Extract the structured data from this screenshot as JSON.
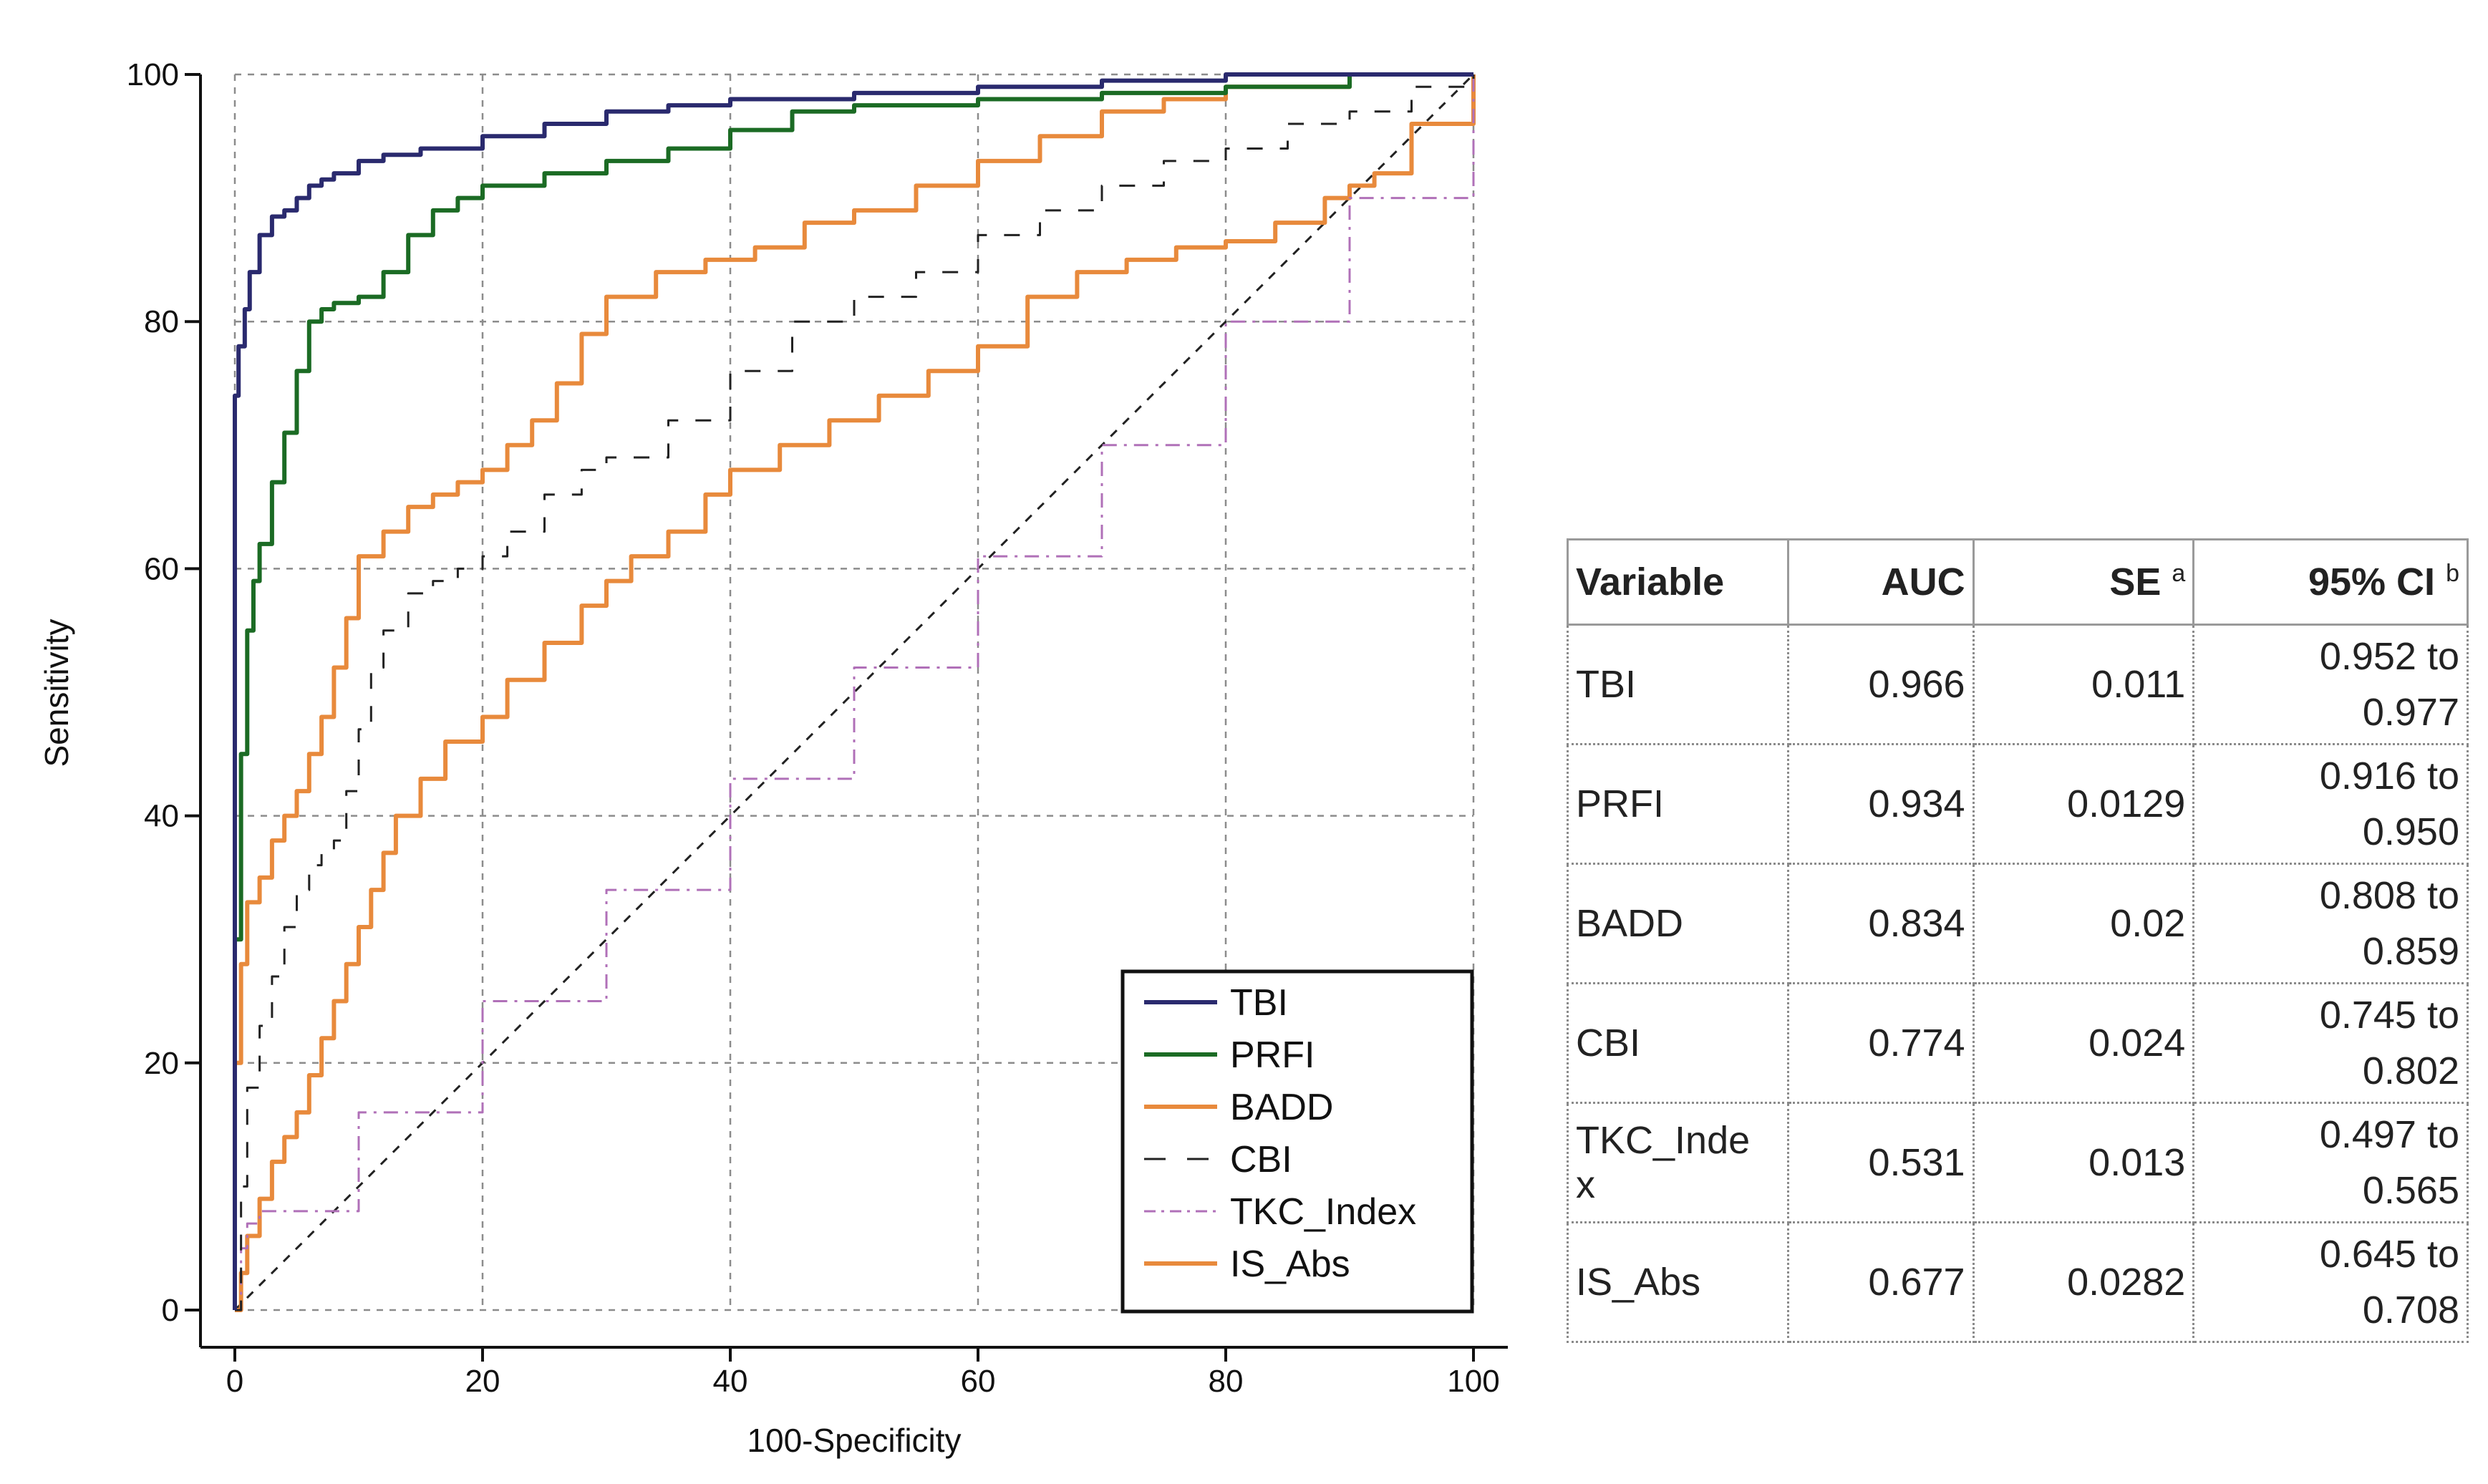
{
  "chart_data": {
    "type": "line",
    "title": "",
    "xlabel": "100-Specificity",
    "ylabel": "Sensitivity",
    "xlim": [
      0,
      100
    ],
    "ylim": [
      0,
      100
    ],
    "xticks": [
      "0",
      "20",
      "40",
      "60",
      "80",
      "100"
    ],
    "yticks": [
      "0",
      "20",
      "40",
      "60",
      "80",
      "100"
    ],
    "grid": true,
    "legend_position": "bottom-right",
    "reference_line": {
      "x": [
        0,
        100
      ],
      "y": [
        0,
        100
      ],
      "style": "dashed",
      "color": "#222222"
    },
    "series": [
      {
        "name": "TBI",
        "color": "#2a2a6e",
        "dash": "solid",
        "x": [
          0,
          0,
          0.3,
          0.8,
          1.2,
          2,
          3,
          4,
          5,
          6,
          7,
          8,
          10,
          12,
          15,
          20,
          25,
          30,
          35,
          40,
          50,
          60,
          70,
          80,
          90,
          100
        ],
        "y": [
          0,
          74,
          78,
          81,
          84,
          87,
          88.5,
          89,
          90,
          91,
          91.5,
          92,
          93,
          93.5,
          94,
          95,
          96,
          97,
          97.5,
          98,
          98.5,
          99,
          99.5,
          100,
          100,
          100
        ]
      },
      {
        "name": "PRFI",
        "color": "#1b6b24",
        "dash": "solid",
        "x": [
          0,
          0,
          0.5,
          1,
          1.5,
          2,
          3,
          4,
          5,
          6,
          7,
          8,
          10,
          12,
          14,
          16,
          18,
          20,
          25,
          30,
          35,
          40,
          45,
          50,
          60,
          70,
          80,
          90,
          100
        ],
        "y": [
          0,
          30,
          45,
          55,
          59,
          62,
          67,
          71,
          76,
          80,
          81,
          81.5,
          82,
          84,
          87,
          89,
          90,
          91,
          92,
          93,
          94,
          95.5,
          97,
          97.5,
          98,
          98.5,
          99,
          100,
          100
        ]
      },
      {
        "name": "BADD",
        "color": "#e88a3c",
        "dash": "solid",
        "x": [
          0,
          0,
          0.5,
          1,
          2,
          3,
          4,
          5,
          6,
          7,
          8,
          9,
          10,
          12,
          14,
          16,
          18,
          20,
          22,
          24,
          26,
          28,
          30,
          34,
          38,
          42,
          46,
          50,
          55,
          60,
          65,
          70,
          75,
          80,
          90,
          100
        ],
        "y": [
          0,
          20,
          28,
          33,
          35,
          38,
          40,
          42,
          45,
          48,
          52,
          56,
          61,
          63,
          65,
          66,
          67,
          68,
          70,
          72,
          75,
          79,
          82,
          84,
          85,
          86,
          88,
          89,
          91,
          93,
          95,
          97,
          98,
          99,
          100,
          100
        ]
      },
      {
        "name": "CBI",
        "color": "#222222",
        "dash": "dashed",
        "x": [
          0,
          0.5,
          1,
          2,
          3,
          4,
          5,
          6,
          7,
          8,
          9,
          10,
          11,
          12,
          14,
          16,
          18,
          20,
          22,
          25,
          28,
          30,
          35,
          40,
          45,
          50,
          55,
          60,
          65,
          70,
          75,
          80,
          85,
          90,
          95,
          100
        ],
        "y": [
          0,
          10,
          18,
          23,
          27,
          31,
          34,
          36,
          37,
          38,
          42,
          47,
          52,
          55,
          58,
          59,
          60,
          61,
          63,
          66,
          68,
          69,
          72,
          76,
          80,
          82,
          84,
          87,
          89,
          91,
          93,
          94,
          96,
          97,
          99,
          100
        ]
      },
      {
        "name": "TKC_Index",
        "color": "#b070b8",
        "dash": "dashdot",
        "x": [
          0,
          0.5,
          1,
          2,
          10,
          20,
          30,
          40,
          50,
          60,
          70,
          80,
          90,
          100
        ],
        "y": [
          0,
          5,
          7,
          8,
          16,
          25,
          34,
          43,
          52,
          61,
          70,
          80,
          90,
          100
        ]
      },
      {
        "name": "IS_Abs",
        "color": "#e88a3c",
        "dash": "solid",
        "x": [
          0,
          0.5,
          1,
          2,
          3,
          4,
          5,
          6,
          7,
          8,
          9,
          10,
          11,
          12,
          13,
          15,
          17,
          20,
          22,
          25,
          28,
          30,
          32,
          35,
          38,
          40,
          44,
          48,
          52,
          56,
          60,
          64,
          68,
          72,
          76,
          80,
          84,
          88,
          90,
          92,
          95,
          100
        ],
        "y": [
          0,
          3,
          6,
          9,
          12,
          14,
          16,
          19,
          22,
          25,
          28,
          31,
          34,
          37,
          40,
          43,
          46,
          48,
          51,
          54,
          57,
          59,
          61,
          63,
          66,
          68,
          70,
          72,
          74,
          76,
          78,
          82,
          84,
          85,
          86,
          86.5,
          88,
          90,
          91,
          92,
          96,
          100
        ]
      }
    ]
  },
  "table": {
    "headers": {
      "variable": "Variable",
      "auc": "AUC",
      "se": "SE",
      "se_note": "a",
      "ci": "95% CI",
      "ci_note": "b"
    },
    "rows": [
      {
        "variable": "TBI",
        "auc": "0.966",
        "se": "0.011",
        "ci_low": "0.952 to",
        "ci_high": "0.977"
      },
      {
        "variable": "PRFI",
        "auc": "0.934",
        "se": "0.0129",
        "ci_low": "0.916 to",
        "ci_high": "0.950"
      },
      {
        "variable": "BADD",
        "auc": "0.834",
        "se": "0.02",
        "ci_low": "0.808 to",
        "ci_high": "0.859"
      },
      {
        "variable": "CBI",
        "auc": "0.774",
        "se": "0.024",
        "ci_low": "0.745 to",
        "ci_high": "0.802"
      },
      {
        "variable": "TKC_Inde x",
        "auc": "0.531",
        "se": "0.013",
        "ci_low": "0.497 to",
        "ci_high": "0.565"
      },
      {
        "variable": "IS_Abs",
        "auc": "0.677",
        "se": "0.0282",
        "ci_low": "0.645 to",
        "ci_high": "0.708"
      }
    ]
  }
}
